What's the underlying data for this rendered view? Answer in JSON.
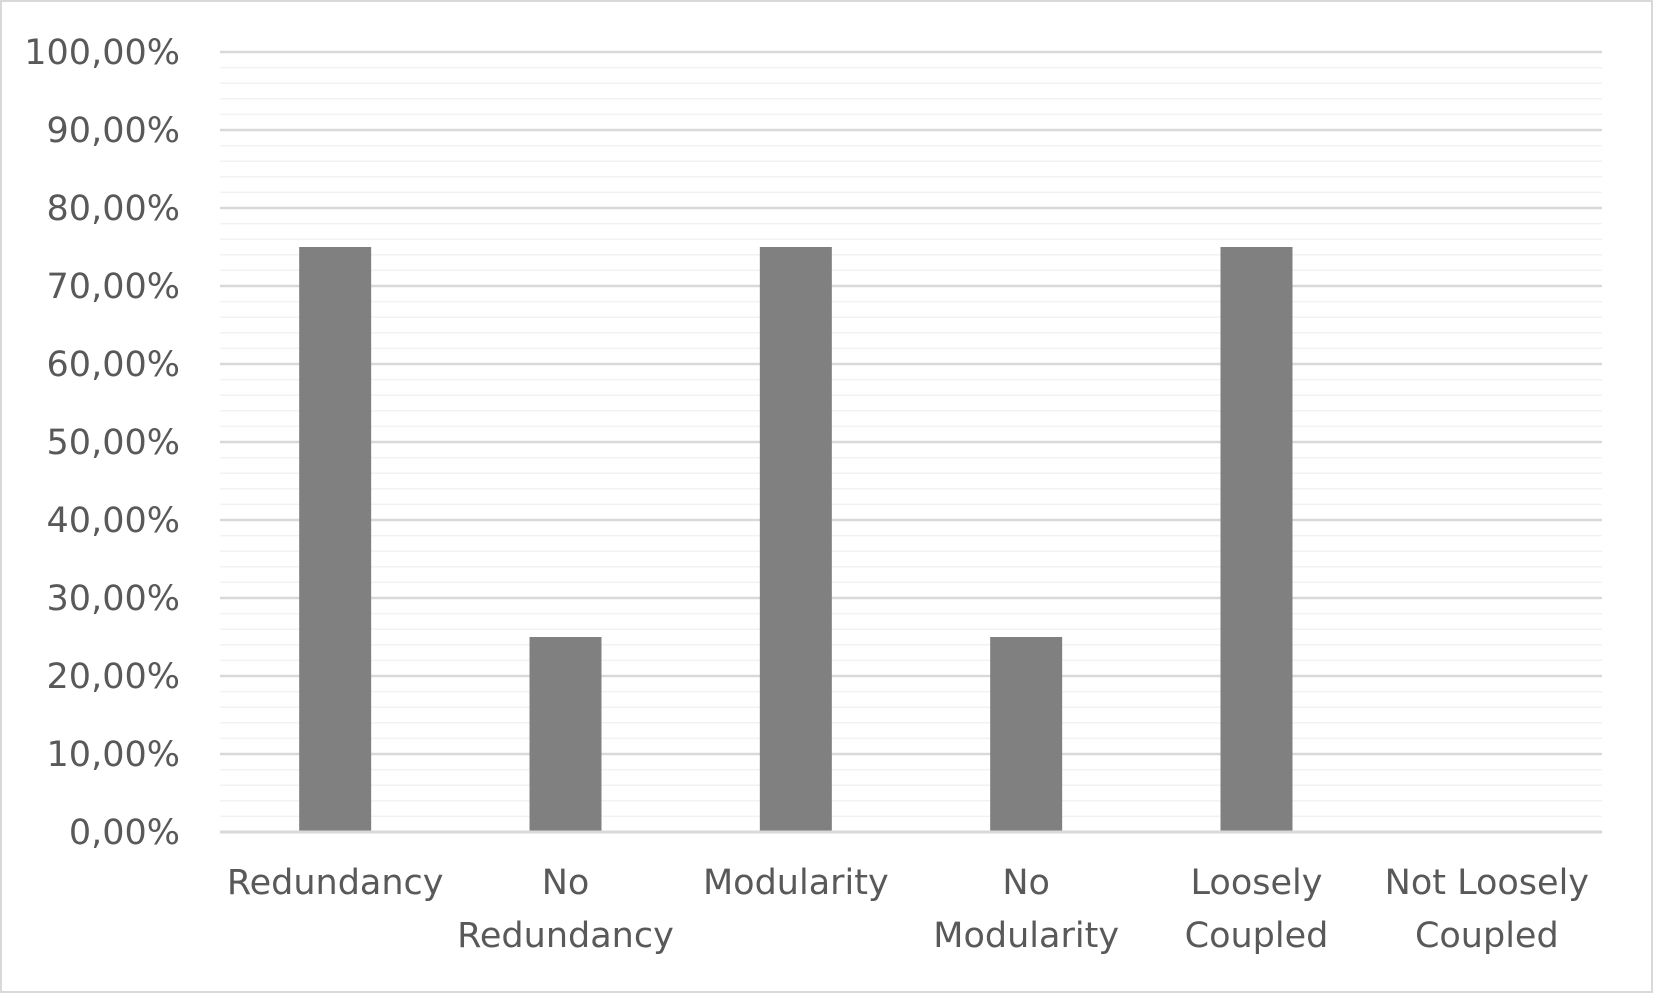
{
  "chart_data": {
    "type": "bar",
    "categories": [
      [
        "Redundancy"
      ],
      [
        "No",
        "Redundancy"
      ],
      [
        "Modularity"
      ],
      [
        "No",
        "Modularity"
      ],
      [
        "Loosely",
        "Coupled"
      ],
      [
        "Not Loosely",
        "Coupled"
      ]
    ],
    "values": [
      0.75,
      0.25,
      0.75,
      0.25,
      0.75,
      0.0
    ],
    "yticks": [
      "0,00%",
      "10,00%",
      "20,00%",
      "30,00%",
      "40,00%",
      "50,00%",
      "60,00%",
      "70,00%",
      "80,00%",
      "90,00%",
      "100,00%"
    ],
    "ylim": [
      0,
      1
    ],
    "grid": true,
    "title": "",
    "xlabel": "",
    "ylabel": "",
    "colors": {
      "bar": "#808080",
      "major_grid": "#d9d9d9",
      "minor_grid": "#f2f2f2",
      "axis": "#d9d9d9",
      "text": "#595959"
    }
  }
}
